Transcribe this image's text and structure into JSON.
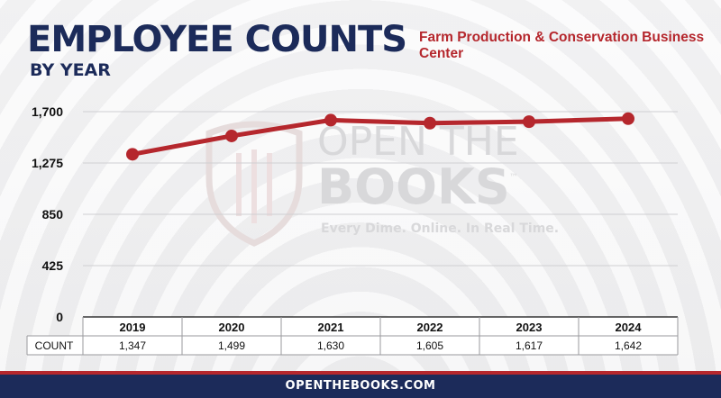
{
  "header": {
    "title": "EMPLOYEE COUNTS",
    "subtitle": "BY YEAR",
    "agency": "Farm Production & Conservation Business Center"
  },
  "watermark": {
    "line1": "OPEN THE",
    "line2": "BOOKS",
    "trademark": "™",
    "tagline": "Every Dime. Online. In Real Time."
  },
  "colors": {
    "navy": "#1c2b5a",
    "red": "#b5272d",
    "line": "#b5272d"
  },
  "chart_data": {
    "type": "line",
    "title": "EMPLOYEE COUNTS",
    "subtitle": "BY YEAR",
    "categories": [
      "2019",
      "2020",
      "2021",
      "2022",
      "2023",
      "2024"
    ],
    "series": [
      {
        "name": "",
        "values": [
          1347,
          1499,
          1630,
          1605,
          1617,
          1642
        ]
      }
    ],
    "table": {
      "row_label": "COUNT",
      "cells": [
        "1,347",
        "1,499",
        "1,630",
        "1,605",
        "1,617",
        "1,642"
      ]
    },
    "yticks": [
      "0",
      "425",
      "850",
      "1,275",
      "1,700"
    ],
    "ylim": [
      0,
      1700
    ],
    "grid": true,
    "legend": "none"
  },
  "footer": {
    "text": "OPENTHEBOOKS.COM"
  }
}
